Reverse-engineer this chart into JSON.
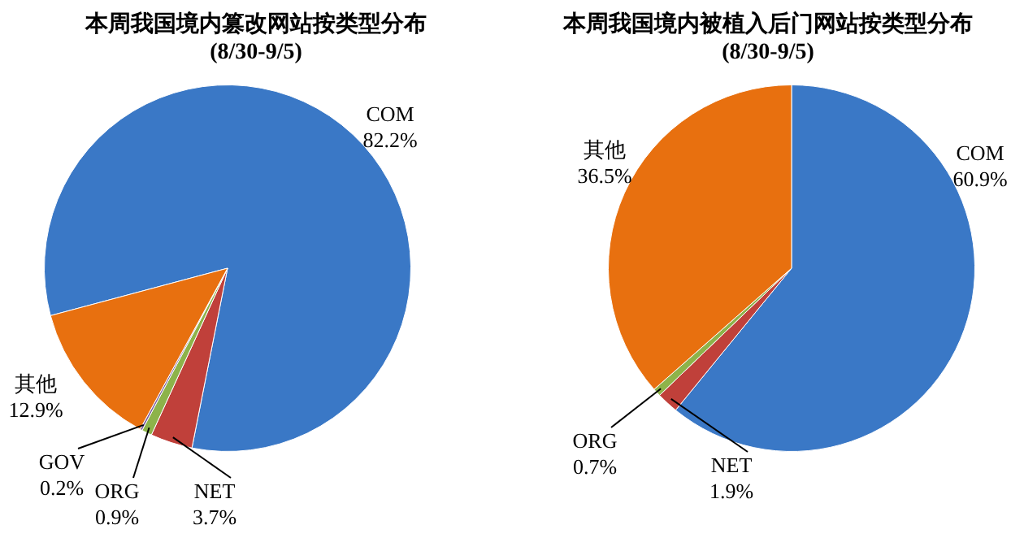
{
  "chart_data": [
    {
      "type": "pie",
      "title": "本周我国境内篡改网站按类型分布",
      "subtitle": "(8/30-9/5)",
      "categories": [
        "COM",
        "NET",
        "ORG",
        "GOV",
        "其他"
      ],
      "values": [
        82.2,
        3.7,
        0.9,
        0.2,
        12.9
      ],
      "value_labels": [
        "82.2%",
        "3.7%",
        "0.9%",
        "0.2%",
        "12.9%"
      ],
      "colors": [
        "#3a78c6",
        "#c0403a",
        "#8db34a",
        "#7b5fa0",
        "#e8700f"
      ]
    },
    {
      "type": "pie",
      "title": "本周我国境内被植入后门网站按类型分布",
      "subtitle": "(8/30-9/5)",
      "categories": [
        "COM",
        "NET",
        "ORG",
        "其他"
      ],
      "values": [
        60.9,
        1.9,
        0.7,
        36.5
      ],
      "value_labels": [
        "60.9%",
        "1.9%",
        "0.7%",
        "36.5%"
      ],
      "colors": [
        "#3a78c6",
        "#c0403a",
        "#8db34a",
        "#e8700f"
      ]
    }
  ]
}
